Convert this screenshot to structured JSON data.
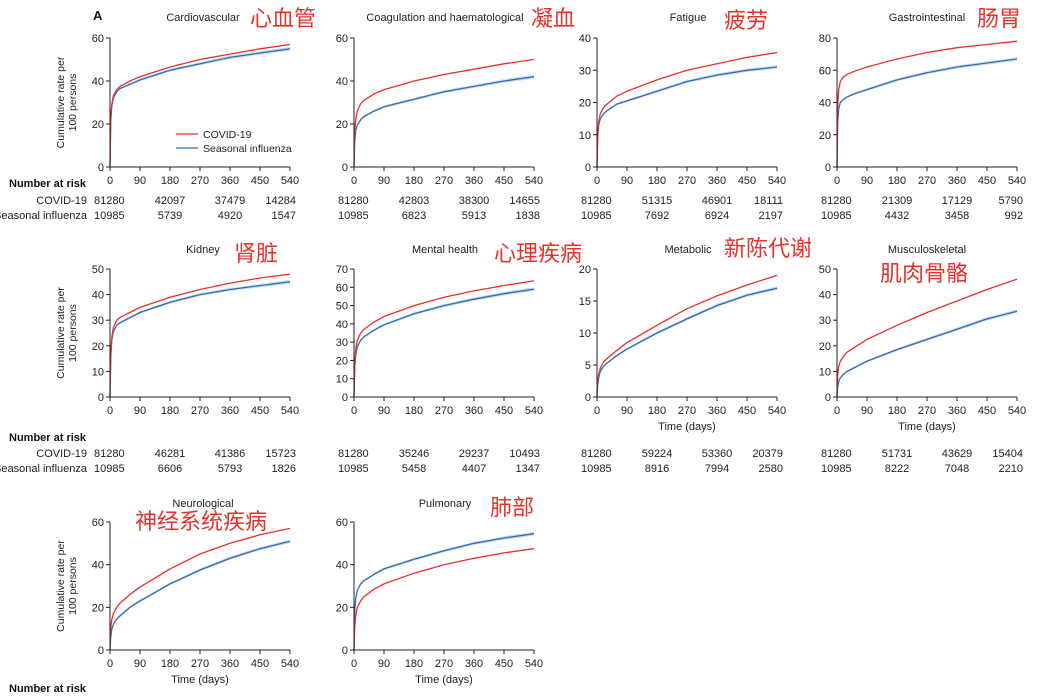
{
  "panel_label": "A",
  "risk_table_title": "Number at risk",
  "risk_row_labels": [
    "COVID-19",
    "Seasonal influenza"
  ],
  "ylabel": "Cumulative rate per\n100 persons",
  "xlabel": "Time (days)",
  "legend": [
    "COVID-19",
    "Seasonal influenza"
  ],
  "colors": {
    "covid": "#e8312a",
    "flu": "#2f6db5",
    "flu_band": "#b9cde8",
    "annotation": "#e8312a",
    "axis": "#222222"
  },
  "chart_data": [
    {
      "type": "line",
      "title": "Cardiovascular",
      "annotation": "心血管",
      "xlabel": "",
      "ylabel": "Cumulative rate per 100 persons",
      "xlim": [
        0,
        540
      ],
      "ylim": [
        0,
        60
      ],
      "x_ticks": [
        0,
        90,
        180,
        270,
        360,
        450,
        540
      ],
      "y_ticks": [
        0,
        20,
        40,
        60
      ],
      "legend_position": "center",
      "series": [
        {
          "name": "COVID-19",
          "x": [
            0,
            2,
            5,
            10,
            20,
            30,
            60,
            90,
            180,
            270,
            360,
            450,
            540
          ],
          "y": [
            0,
            22,
            29,
            33,
            36,
            37.5,
            40,
            42,
            46.5,
            50,
            52.5,
            55,
            57
          ]
        },
        {
          "name": "Seasonal influenza",
          "x": [
            0,
            2,
            5,
            10,
            20,
            30,
            60,
            90,
            180,
            270,
            360,
            450,
            540
          ],
          "y": [
            0,
            21,
            28,
            32,
            35,
            36.5,
            38.5,
            40.5,
            45,
            48,
            51,
            53,
            55
          ]
        }
      ],
      "at_risk": {
        "x": [
          0,
          180,
          360,
          540
        ],
        "covid": [
          "81280",
          "42097",
          "37479",
          "14284"
        ],
        "flu": [
          "10985",
          "5739",
          "4920",
          "1547"
        ]
      }
    },
    {
      "type": "line",
      "title": "Coagulation and haematological",
      "annotation": "凝血",
      "xlabel": "",
      "ylabel": "",
      "xlim": [
        0,
        540
      ],
      "ylim": [
        0,
        60
      ],
      "x_ticks": [
        0,
        90,
        180,
        270,
        360,
        450,
        540
      ],
      "y_ticks": [
        0,
        20,
        40,
        60
      ],
      "series": [
        {
          "name": "COVID-19",
          "x": [
            0,
            2,
            5,
            10,
            20,
            30,
            60,
            90,
            180,
            270,
            360,
            450,
            540
          ],
          "y": [
            0,
            16,
            22,
            26,
            29.5,
            31,
            34,
            36,
            40,
            43,
            45.5,
            48,
            50
          ]
        },
        {
          "name": "Seasonal influenza",
          "x": [
            0,
            2,
            5,
            10,
            20,
            30,
            60,
            90,
            180,
            270,
            360,
            450,
            540
          ],
          "y": [
            0,
            12,
            17,
            19.5,
            22,
            23.5,
            26,
            28,
            31.5,
            35,
            37.5,
            40,
            42
          ]
        }
      ],
      "at_risk": {
        "x": [
          0,
          180,
          360,
          540
        ],
        "covid": [
          "81280",
          "42803",
          "38300",
          "14655"
        ],
        "flu": [
          "10985",
          "6823",
          "5913",
          "1838"
        ]
      }
    },
    {
      "type": "line",
      "title": "Fatigue",
      "annotation": "疲劳",
      "xlabel": "",
      "ylabel": "",
      "xlim": [
        0,
        540
      ],
      "ylim": [
        0,
        40
      ],
      "x_ticks": [
        0,
        90,
        180,
        270,
        360,
        450,
        540
      ],
      "y_ticks": [
        0,
        10,
        20,
        30,
        40
      ],
      "series": [
        {
          "name": "COVID-19",
          "x": [
            0,
            2,
            5,
            10,
            20,
            30,
            60,
            90,
            180,
            270,
            360,
            450,
            540
          ],
          "y": [
            0,
            10,
            14,
            16.5,
            18.5,
            19.5,
            22,
            23.5,
            27,
            30,
            32,
            34,
            35.5
          ]
        },
        {
          "name": "Seasonal influenza",
          "x": [
            0,
            2,
            5,
            10,
            20,
            30,
            60,
            90,
            180,
            270,
            360,
            450,
            540
          ],
          "y": [
            0,
            9,
            13,
            15,
            16.5,
            17.5,
            19.5,
            20.5,
            23.5,
            26.5,
            28.5,
            30,
            31
          ]
        }
      ],
      "at_risk": {
        "x": [
          0,
          180,
          360,
          540
        ],
        "covid": [
          "81280",
          "51315",
          "46901",
          "18111"
        ],
        "flu": [
          "10985",
          "7692",
          "6924",
          "2197"
        ]
      }
    },
    {
      "type": "line",
      "title": "Gastrointestinal",
      "annotation": "肠胃",
      "xlabel": "",
      "ylabel": "",
      "xlim": [
        0,
        540
      ],
      "ylim": [
        0,
        80
      ],
      "x_ticks": [
        0,
        90,
        180,
        270,
        360,
        450,
        540
      ],
      "y_ticks": [
        0,
        20,
        40,
        60,
        80
      ],
      "series": [
        {
          "name": "COVID-19",
          "x": [
            0,
            2,
            5,
            10,
            20,
            30,
            60,
            90,
            180,
            270,
            360,
            450,
            540
          ],
          "y": [
            0,
            38,
            48,
            53,
            56,
            57.5,
            60,
            62,
            67,
            71,
            74,
            76,
            78
          ]
        },
        {
          "name": "Seasonal influenza",
          "x": [
            0,
            2,
            5,
            10,
            20,
            30,
            60,
            90,
            180,
            270,
            360,
            450,
            540
          ],
          "y": [
            0,
            28,
            36,
            40,
            42,
            43.5,
            46,
            48,
            54,
            58.5,
            62,
            64.5,
            67
          ]
        }
      ],
      "at_risk": {
        "x": [
          0,
          180,
          360,
          540
        ],
        "covid": [
          "81280",
          "21309",
          "17129",
          "5790"
        ],
        "flu": [
          "10985",
          "4432",
          "3458",
          "992"
        ]
      }
    },
    {
      "type": "line",
      "title": "Kidney",
      "annotation": "肾脏",
      "xlabel": "",
      "ylabel": "Cumulative rate per 100 persons",
      "xlim": [
        0,
        540
      ],
      "ylim": [
        0,
        50
      ],
      "x_ticks": [
        0,
        90,
        180,
        270,
        360,
        450,
        540
      ],
      "y_ticks": [
        0,
        10,
        20,
        30,
        40,
        50
      ],
      "series": [
        {
          "name": "COVID-19",
          "x": [
            0,
            2,
            5,
            10,
            20,
            30,
            60,
            90,
            180,
            270,
            360,
            450,
            540
          ],
          "y": [
            0,
            16,
            23,
            27,
            30,
            31,
            33,
            35,
            39,
            42,
            44.5,
            46.5,
            48
          ]
        },
        {
          "name": "Seasonal influenza",
          "x": [
            0,
            2,
            5,
            10,
            20,
            30,
            60,
            90,
            180,
            270,
            360,
            450,
            540
          ],
          "y": [
            0,
            15,
            22,
            25.5,
            28,
            29,
            31,
            33,
            37,
            40,
            42,
            43.5,
            45
          ]
        }
      ],
      "at_risk": {
        "x": [
          0,
          180,
          360,
          540
        ],
        "covid": [
          "81280",
          "46281",
          "41386",
          "15723"
        ],
        "flu": [
          "10985",
          "6606",
          "5793",
          "1826"
        ]
      }
    },
    {
      "type": "line",
      "title": "Mental health",
      "annotation": "心理疾病",
      "xlabel": "",
      "ylabel": "",
      "xlim": [
        0,
        540
      ],
      "ylim": [
        0,
        70
      ],
      "x_ticks": [
        0,
        90,
        180,
        270,
        360,
        450,
        540
      ],
      "y_ticks": [
        0,
        10,
        20,
        30,
        40,
        50,
        60,
        70
      ],
      "series": [
        {
          "name": "COVID-19",
          "x": [
            0,
            2,
            5,
            10,
            20,
            30,
            60,
            90,
            180,
            270,
            360,
            450,
            540
          ],
          "y": [
            0,
            18,
            26,
            31,
            35,
            37,
            41,
            44,
            50,
            54.5,
            58,
            61,
            63.5
          ]
        },
        {
          "name": "Seasonal influenza",
          "x": [
            0,
            2,
            5,
            10,
            20,
            30,
            60,
            90,
            180,
            270,
            360,
            450,
            540
          ],
          "y": [
            0,
            16,
            23,
            27.5,
            31,
            33,
            36.5,
            39.5,
            45.5,
            50,
            53.5,
            56.5,
            59
          ]
        }
      ],
      "at_risk": {
        "x": [
          0,
          180,
          360,
          540
        ],
        "covid": [
          "81280",
          "35246",
          "29237",
          "10493"
        ],
        "flu": [
          "10985",
          "5458",
          "4407",
          "1347"
        ]
      }
    },
    {
      "type": "line",
      "title": "Metabolic",
      "annotation": "新陈代谢",
      "xlabel": "Time (days)",
      "ylabel": "",
      "xlim": [
        0,
        540
      ],
      "ylim": [
        0,
        20
      ],
      "x_ticks": [
        0,
        90,
        180,
        270,
        360,
        450,
        540
      ],
      "y_ticks": [
        0,
        5,
        10,
        15,
        20
      ],
      "series": [
        {
          "name": "COVID-19",
          "x": [
            0,
            2,
            5,
            10,
            20,
            30,
            60,
            90,
            180,
            270,
            360,
            450,
            540
          ],
          "y": [
            0,
            2.5,
            3.5,
            4.5,
            5.5,
            6,
            7.3,
            8.5,
            11.2,
            13.8,
            15.8,
            17.5,
            19
          ]
        },
        {
          "name": "Seasonal influenza",
          "x": [
            0,
            2,
            5,
            10,
            20,
            30,
            60,
            90,
            180,
            270,
            360,
            450,
            540
          ],
          "y": [
            0,
            2,
            3,
            4,
            4.8,
            5.3,
            6.5,
            7.5,
            10,
            12.2,
            14.3,
            15.9,
            17
          ]
        }
      ],
      "at_risk": {
        "x": [
          0,
          180,
          360,
          540
        ],
        "covid": [
          "81280",
          "59224",
          "53360",
          "20379"
        ],
        "flu": [
          "10985",
          "8916",
          "7994",
          "2580"
        ]
      }
    },
    {
      "type": "line",
      "title": "Musculoskeletal",
      "annotation": "肌肉骨骼",
      "xlabel": "Time (days)",
      "ylabel": "",
      "xlim": [
        0,
        540
      ],
      "ylim": [
        0,
        50
      ],
      "x_ticks": [
        0,
        90,
        180,
        270,
        360,
        450,
        540
      ],
      "y_ticks": [
        0,
        10,
        20,
        30,
        40,
        50
      ],
      "series": [
        {
          "name": "COVID-19",
          "x": [
            0,
            2,
            5,
            10,
            20,
            30,
            60,
            90,
            180,
            270,
            360,
            450,
            540
          ],
          "y": [
            0,
            9,
            12,
            14,
            16,
            17.5,
            20,
            22.5,
            28,
            33,
            37.5,
            42,
            46
          ]
        },
        {
          "name": "Seasonal influenza",
          "x": [
            0,
            2,
            5,
            10,
            20,
            30,
            60,
            90,
            180,
            270,
            360,
            450,
            540
          ],
          "y": [
            0,
            4,
            6,
            7.5,
            9,
            10,
            12,
            14,
            18.5,
            22.5,
            26.5,
            30.5,
            33.5
          ]
        }
      ],
      "at_risk": {
        "x": [
          0,
          180,
          360,
          540
        ],
        "covid": [
          "81280",
          "51731",
          "43629",
          "15404"
        ],
        "flu": [
          "10985",
          "8222",
          "7048",
          "2210"
        ]
      }
    },
    {
      "type": "line",
      "title": "Neurological",
      "annotation": "神经系统疾病",
      "xlabel": "Time (days)",
      "ylabel": "Cumulative rate per 100 persons",
      "xlim": [
        0,
        540
      ],
      "ylim": [
        0,
        60
      ],
      "x_ticks": [
        0,
        90,
        180,
        270,
        360,
        450,
        540
      ],
      "y_ticks": [
        0,
        20,
        40,
        60
      ],
      "series": [
        {
          "name": "COVID-19",
          "x": [
            0,
            2,
            5,
            10,
            20,
            30,
            60,
            90,
            180,
            270,
            360,
            450,
            540
          ],
          "y": [
            0,
            10,
            14,
            17,
            20,
            22,
            26,
            29.5,
            38,
            45,
            50,
            54,
            57
          ]
        },
        {
          "name": "Seasonal influenza",
          "x": [
            0,
            2,
            5,
            10,
            20,
            30,
            60,
            90,
            180,
            270,
            360,
            450,
            540
          ],
          "y": [
            0,
            6,
            9.5,
            12,
            14.5,
            16,
            20,
            23,
            31,
            37.5,
            43,
            47.5,
            51
          ]
        }
      ],
      "at_risk": null
    },
    {
      "type": "line",
      "title": "Pulmonary",
      "annotation": "肺部",
      "xlabel": "Time (days)",
      "ylabel": "",
      "xlim": [
        0,
        540
      ],
      "ylim": [
        0,
        60
      ],
      "x_ticks": [
        0,
        90,
        180,
        270,
        360,
        450,
        540
      ],
      "y_ticks": [
        0,
        20,
        40,
        60
      ],
      "series": [
        {
          "name": "COVID-19",
          "x": [
            0,
            2,
            5,
            10,
            20,
            30,
            60,
            90,
            180,
            270,
            360,
            450,
            540
          ],
          "y": [
            0,
            11,
            16,
            20,
            23,
            25,
            28.5,
            31,
            36,
            40,
            43,
            45.5,
            47.5
          ]
        },
        {
          "name": "Seasonal influenza",
          "x": [
            0,
            2,
            5,
            10,
            20,
            30,
            60,
            90,
            180,
            270,
            360,
            450,
            540
          ],
          "y": [
            0,
            18,
            24,
            28,
            31,
            32.5,
            35.5,
            38,
            42.5,
            46.5,
            50,
            52.5,
            54.5
          ]
        }
      ],
      "at_risk": null
    }
  ]
}
